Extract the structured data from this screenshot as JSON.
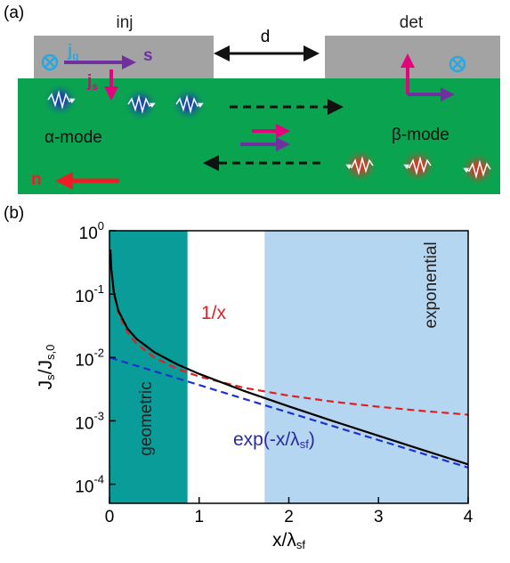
{
  "panel_a": {
    "label": "(a)",
    "injector": "inj",
    "detector": "det",
    "distance": "d",
    "charge_current": [
      "j",
      "q"
    ],
    "spin_current": [
      "j",
      "s"
    ],
    "spin": "s",
    "alpha_mode": "α-mode",
    "beta_mode": "β-mode",
    "normal": "n"
  },
  "chart_data": {
    "type": "line",
    "panel_label": "(b)",
    "xlabel": [
      "x/λ",
      "sf"
    ],
    "ylabel": [
      "J",
      "s",
      "/J",
      "s,0"
    ],
    "x": [
      0.01,
      0.02,
      0.05,
      0.1,
      0.2,
      0.3,
      0.5,
      0.75,
      1,
      1.5,
      2,
      2.5,
      3,
      3.5,
      4
    ],
    "series": [
      {
        "color": "#e02020",
        "dash": true,
        "values": [
          0.5,
          0.25,
          0.1,
          0.05,
          0.025,
          0.0167,
          0.01,
          0.00667,
          0.005,
          0.00333,
          0.0025,
          0.002,
          0.00167,
          0.00143,
          0.00125
        ]
      },
      {
        "color": "#2030d0",
        "dash": true,
        "values": [
          0.0099,
          0.0098,
          0.00951,
          0.00905,
          0.00819,
          0.00741,
          0.00607,
          0.00472,
          0.00368,
          0.00223,
          0.00135,
          0.00082,
          0.000498,
          0.000302,
          0.000183
        ]
      },
      {
        "color": "#000000",
        "dash": false,
        "values": [
          0.505,
          0.255,
          0.105,
          0.0543,
          0.0287,
          0.0198,
          0.0121,
          0.00787,
          0.00552,
          0.00297,
          0.00169,
          0.000985,
          0.000581,
          0.000345,
          0.000206
        ]
      }
    ],
    "spans": [
      {
        "x0": 0,
        "x1": 0.87,
        "color": "#0a9c98",
        "label": "geometric"
      },
      {
        "x0": 1.73,
        "x1": 4,
        "color": "#b4d6f0",
        "label": "exponential"
      }
    ],
    "annotations": [
      {
        "text": [
          "1/x"
        ],
        "color": "#e02020"
      },
      {
        "text": [
          "exp(-x/λ",
          "sf",
          ")"
        ],
        "color": "#2a2aa0"
      }
    ],
    "xlim": [
      0,
      4
    ],
    "xticks": [
      0,
      1,
      2,
      3,
      4
    ],
    "ylim": [
      5e-05,
      1
    ],
    "log_y": true,
    "yticks": [
      {
        "value": 1,
        "base": "10",
        "exponent": "0"
      },
      {
        "value": 0.1,
        "base": "10",
        "exponent": "-1"
      },
      {
        "value": 0.01,
        "base": "10",
        "exponent": "-2"
      },
      {
        "value": 0.001,
        "base": "10",
        "exponent": "-3"
      },
      {
        "value": 0.0001,
        "base": "10",
        "exponent": "-4"
      }
    ]
  }
}
